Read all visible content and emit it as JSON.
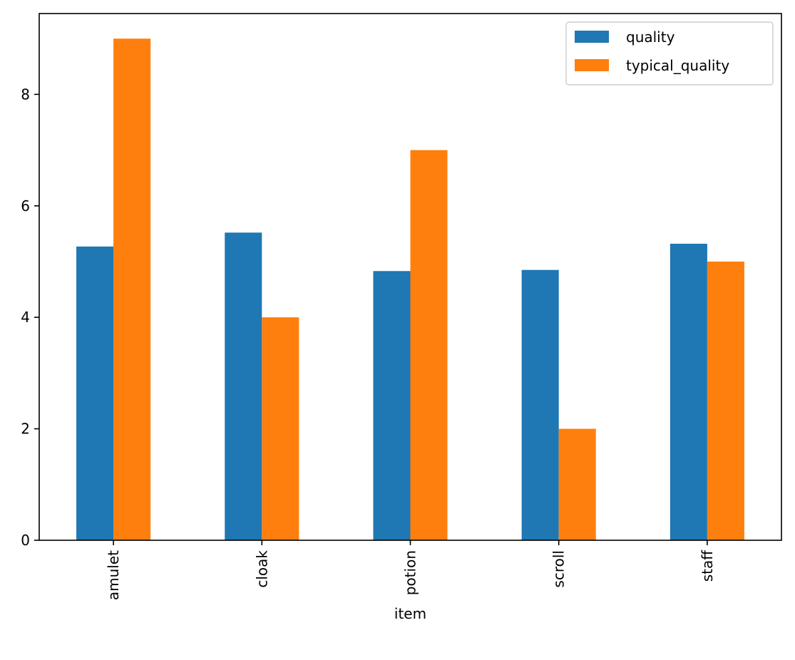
{
  "chart_data": {
    "type": "bar",
    "title": "",
    "xlabel": "item",
    "ylabel": "",
    "categories": [
      "amulet",
      "cloak",
      "potion",
      "scroll",
      "staff"
    ],
    "series": [
      {
        "name": "quality",
        "values": [
          5.27,
          5.52,
          4.83,
          4.85,
          5.32
        ],
        "color": "#1f77b4"
      },
      {
        "name": "typical_quality",
        "values": [
          9,
          4,
          7,
          2,
          5
        ],
        "color": "#ff7f0e"
      }
    ],
    "ylim": [
      0,
      9.45
    ],
    "yticks": [
      0,
      2,
      4,
      6,
      8
    ],
    "grid": false,
    "legend_position": "top-right",
    "xtick_rotation": "vertical"
  }
}
